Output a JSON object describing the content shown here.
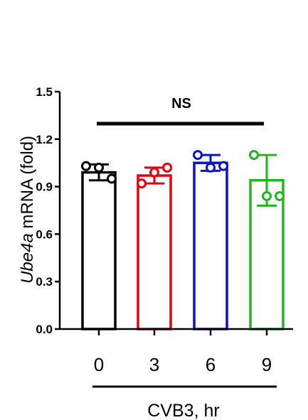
{
  "chart_data": {
    "type": "bar",
    "categories": [
      "0",
      "3",
      "6",
      "9"
    ],
    "values": [
      0.99,
      0.97,
      1.05,
      0.94
    ],
    "errors": [
      0.05,
      0.05,
      0.05,
      0.16
    ],
    "points": [
      [
        1.03,
        1.02,
        0.95
      ],
      [
        0.92,
        0.99,
        1.02
      ],
      [
        1.1,
        1.02,
        1.03
      ],
      [
        1.1,
        0.84,
        0.84
      ]
    ],
    "colors": [
      "#000000",
      "#e3000f",
      "#0a13c8",
      "#22b522"
    ],
    "ylabel_italic": "Ube4a",
    "ylabel_rest": " mRNA (fold)",
    "xlabel": "CVB3, hr",
    "significance": "NS",
    "ylim": [
      0,
      1.5
    ],
    "yticks": [
      "0.0",
      "0.3",
      "0.6",
      "0.9",
      "1.2",
      "1.5"
    ],
    "grid": false,
    "legend": "none"
  }
}
